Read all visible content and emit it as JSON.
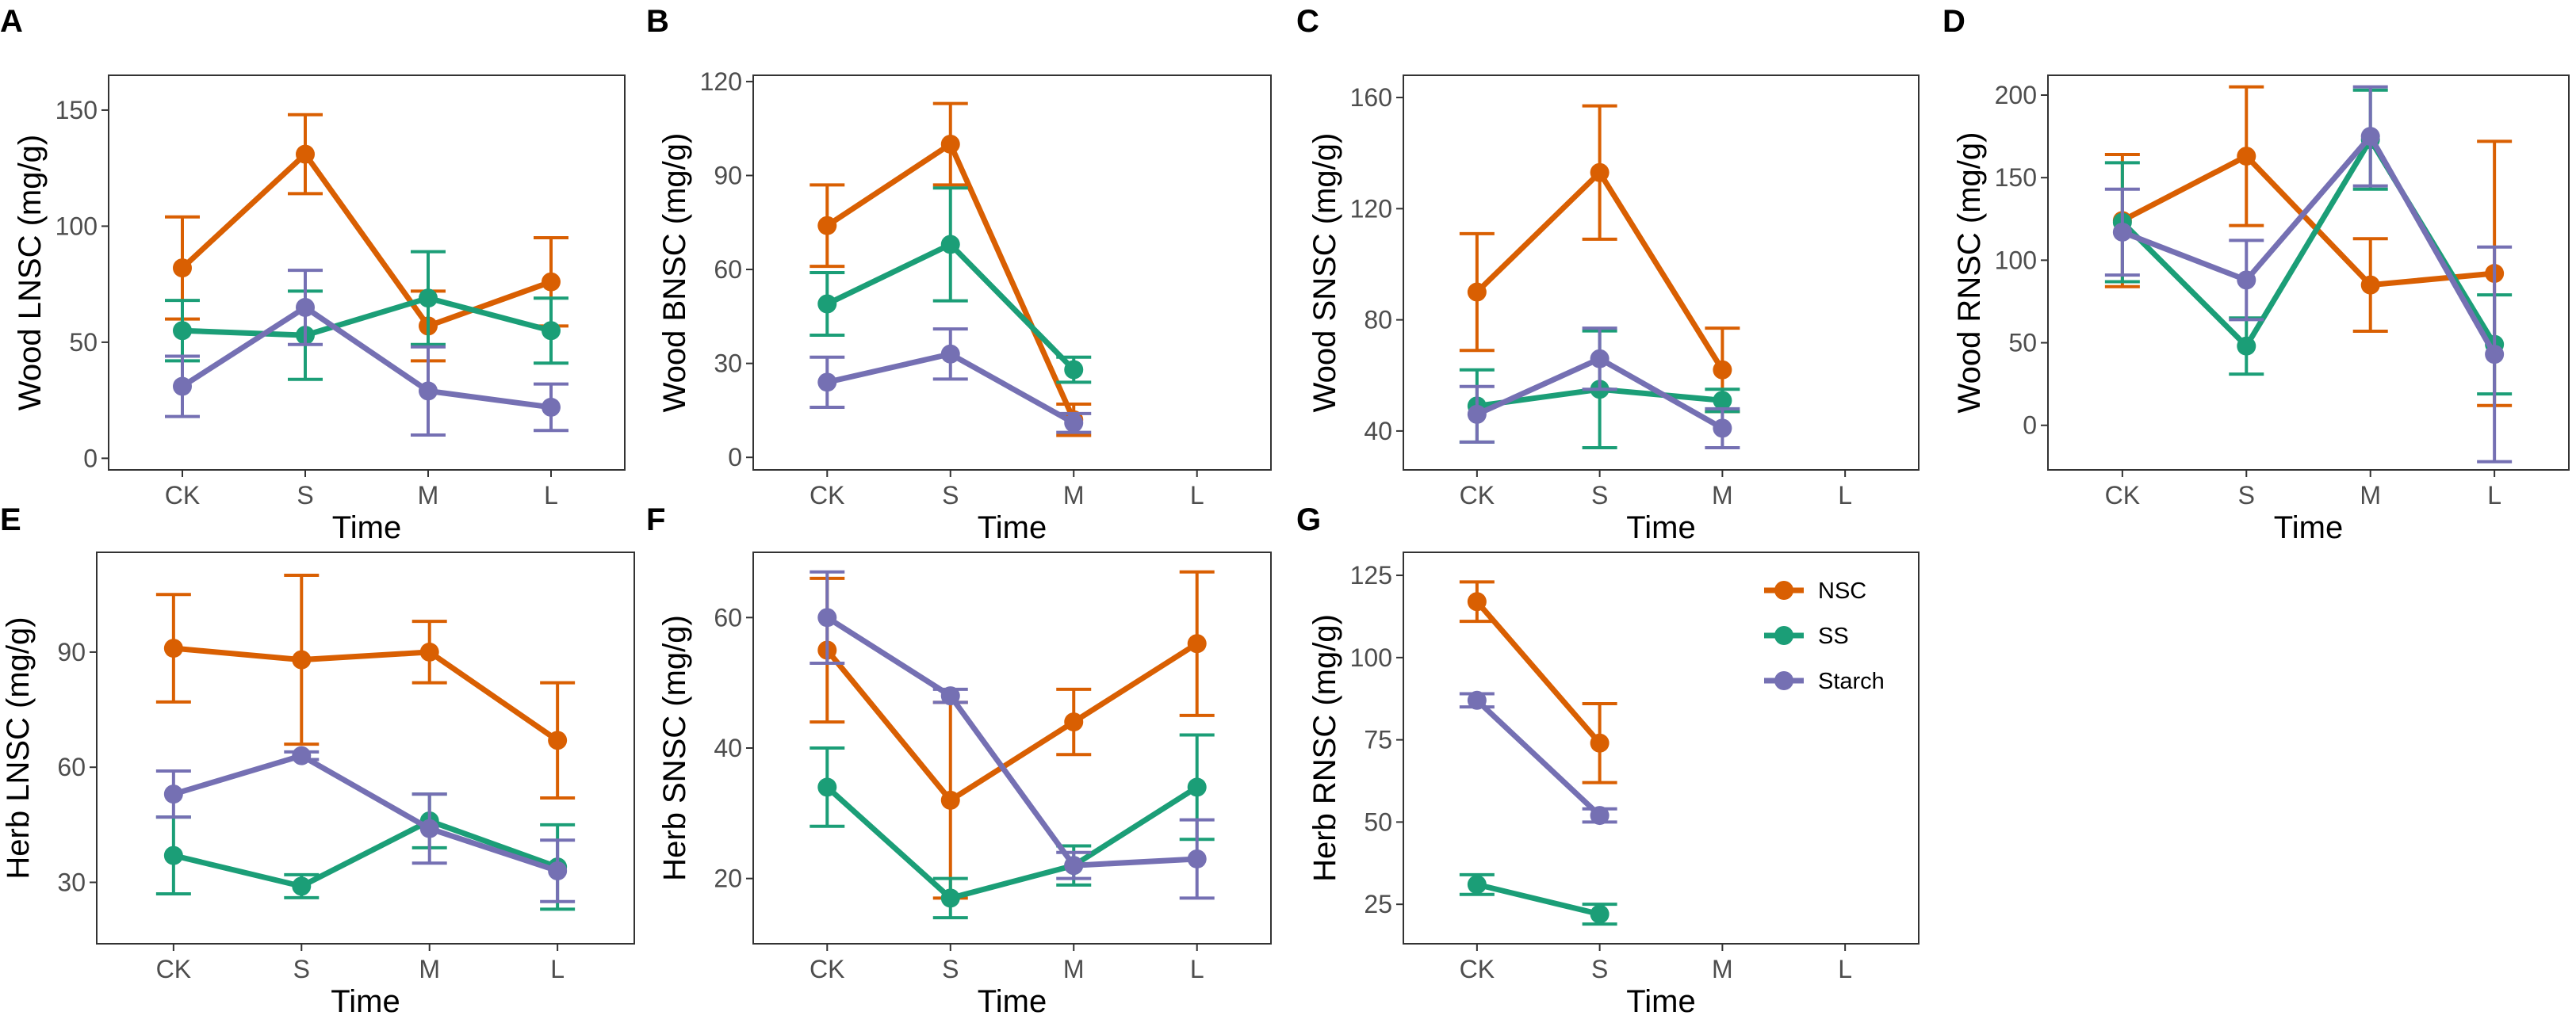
{
  "colors": {
    "NSC": "#d95f02",
    "SS": "#1b9e77",
    "Starch": "#7570b3"
  },
  "legend": [
    "NSC",
    "SS",
    "Starch"
  ],
  "chart_data": [
    {
      "panel": "A",
      "type": "line",
      "xlabel": "Time",
      "ylabel": "Wood LNSC (mg/g)",
      "categories": [
        "CK",
        "S",
        "M",
        "L"
      ],
      "ylim": [
        -5,
        165
      ],
      "yticks": [
        0,
        50,
        100,
        150
      ],
      "series": [
        {
          "name": "NSC",
          "values": [
            82,
            131,
            57,
            76
          ],
          "errors": [
            22,
            17,
            15,
            19
          ]
        },
        {
          "name": "SS",
          "values": [
            55,
            53,
            69,
            55
          ],
          "errors": [
            13,
            19,
            20,
            14
          ]
        },
        {
          "name": "Starch",
          "values": [
            31,
            65,
            29,
            22
          ],
          "errors": [
            13,
            16,
            19,
            10
          ]
        }
      ]
    },
    {
      "panel": "B",
      "type": "line",
      "xlabel": "Time",
      "ylabel": "Wood BNSC (mg/g)",
      "categories": [
        "CK",
        "S",
        "M",
        "L"
      ],
      "ylim": [
        -4,
        122
      ],
      "yticks": [
        0,
        30,
        60,
        90,
        120
      ],
      "series": [
        {
          "name": "NSC",
          "values": [
            74,
            100,
            12,
            null
          ],
          "errors": [
            13,
            13,
            5,
            null
          ]
        },
        {
          "name": "SS",
          "values": [
            49,
            68,
            28,
            null
          ],
          "errors": [
            10,
            18,
            4,
            null
          ]
        },
        {
          "name": "Starch",
          "values": [
            24,
            33,
            11,
            null
          ],
          "errors": [
            8,
            8,
            3,
            null
          ]
        }
      ]
    },
    {
      "panel": "C",
      "type": "line",
      "xlabel": "Time",
      "ylabel": "Wood SNSC (mg/g)",
      "categories": [
        "CK",
        "S",
        "M",
        "L"
      ],
      "ylim": [
        26,
        168
      ],
      "yticks": [
        40,
        80,
        120,
        160
      ],
      "series": [
        {
          "name": "NSC",
          "values": [
            90,
            133,
            62,
            null
          ],
          "errors": [
            21,
            24,
            15,
            null
          ]
        },
        {
          "name": "SS",
          "values": [
            49,
            55,
            51,
            null
          ],
          "errors": [
            13,
            21,
            4,
            null
          ]
        },
        {
          "name": "Starch",
          "values": [
            46,
            66,
            41,
            null
          ],
          "errors": [
            10,
            11,
            7,
            null
          ]
        }
      ]
    },
    {
      "panel": "D",
      "type": "line",
      "xlabel": "Time",
      "ylabel": "Wood RNSC (mg/g)",
      "categories": [
        "CK",
        "S",
        "M",
        "L"
      ],
      "ylim": [
        -27,
        212
      ],
      "yticks": [
        0,
        50,
        100,
        150,
        200
      ],
      "series": [
        {
          "name": "NSC",
          "values": [
            124,
            163,
            85,
            92
          ],
          "errors": [
            40,
            42,
            28,
            80
          ]
        },
        {
          "name": "SS",
          "values": [
            123,
            48,
            173,
            49
          ],
          "errors": [
            36,
            17,
            30,
            30
          ]
        },
        {
          "name": "Starch",
          "values": [
            117,
            88,
            175,
            43
          ],
          "errors": [
            26,
            24,
            30,
            65
          ]
        }
      ]
    },
    {
      "panel": "E",
      "type": "line",
      "xlabel": "Time",
      "ylabel": "Herb LNSC (mg/g)",
      "categories": [
        "CK",
        "S",
        "M",
        "L"
      ],
      "ylim": [
        14,
        116
      ],
      "yticks": [
        30,
        60,
        90
      ],
      "series": [
        {
          "name": "NSC",
          "values": [
            91,
            88,
            90,
            67
          ],
          "errors": [
            14,
            22,
            8,
            15
          ]
        },
        {
          "name": "SS",
          "values": [
            37,
            29,
            46,
            34
          ],
          "errors": [
            10,
            3,
            7,
            11
          ]
        },
        {
          "name": "Starch",
          "values": [
            53,
            63,
            44,
            33
          ],
          "errors": [
            6,
            1,
            9,
            8
          ]
        }
      ]
    },
    {
      "panel": "F",
      "type": "line",
      "xlabel": "Time",
      "ylabel": "Herb SNSC (mg/g)",
      "categories": [
        "CK",
        "S",
        "M",
        "L"
      ],
      "ylim": [
        10,
        70
      ],
      "yticks": [
        20,
        40,
        60
      ],
      "series": [
        {
          "name": "NSC",
          "values": [
            55,
            32,
            44,
            56
          ],
          "errors": [
            11,
            15,
            5,
            11
          ]
        },
        {
          "name": "SS",
          "values": [
            34,
            17,
            22,
            34
          ],
          "errors": [
            6,
            3,
            3,
            8
          ]
        },
        {
          "name": "Starch",
          "values": [
            60,
            48,
            22,
            23
          ],
          "errors": [
            7,
            1,
            2,
            6
          ]
        }
      ]
    },
    {
      "panel": "G",
      "type": "line",
      "xlabel": "Time",
      "ylabel": "Herb RNSC (mg/g)",
      "categories": [
        "CK",
        "S",
        "M",
        "L"
      ],
      "ylim": [
        13,
        132
      ],
      "yticks": [
        25,
        50,
        75,
        100,
        125
      ],
      "series": [
        {
          "name": "NSC",
          "values": [
            117,
            74,
            null,
            null
          ],
          "errors": [
            6,
            12,
            null,
            null
          ]
        },
        {
          "name": "SS",
          "values": [
            31,
            22,
            null,
            null
          ],
          "errors": [
            3,
            3,
            null,
            null
          ]
        },
        {
          "name": "Starch",
          "values": [
            87,
            52,
            null,
            null
          ],
          "errors": [
            2,
            2,
            null,
            null
          ]
        }
      ]
    }
  ]
}
